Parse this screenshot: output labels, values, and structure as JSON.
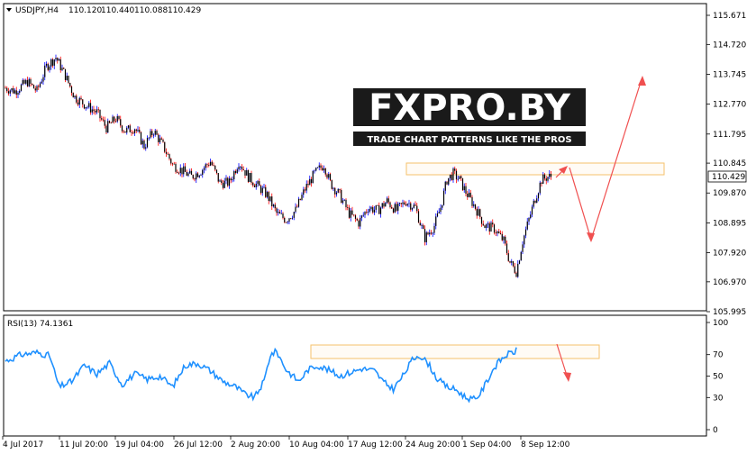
{
  "header": {
    "symbol": "USDJPY,H4",
    "open": "110.120",
    "high": "110.440",
    "low": "110.088",
    "close": "110.429"
  },
  "watermark": {
    "brand": "FXPRO.BY",
    "tagline": "TRADE CHART PATTERNS LIKE THE PROS"
  },
  "indicator": {
    "label": "RSI(13) 74.1361"
  },
  "colors": {
    "bull": "#0000ff",
    "bear": "#ff0000",
    "candle_body": "#000000",
    "rsi_line": "#1e90ff",
    "arrow": "#f05050",
    "zone": "#f5c26b"
  },
  "chart_data": [
    {
      "type": "candlestick",
      "symbol": "USDJPY",
      "timeframe": "H4",
      "ylim": [
        105.995,
        115.671
      ],
      "y_ticks": [
        "115.671",
        "114.720",
        "113.745",
        "112.770",
        "111.795",
        "110.845",
        "109.870",
        "108.895",
        "107.920",
        "106.970",
        "105.995"
      ],
      "current_price": "110.429",
      "x_tick_labels": [
        "4 Jul 2017",
        "11 Jul 20:00",
        "19 Jul 04:00",
        "26 Jul 12:00",
        "2 Aug 20:00",
        "10 Aug 04:00",
        "17 Aug 12:00",
        "24 Aug 20:00",
        "1 Sep 04:00",
        "8 Sep 12:00"
      ],
      "path_anchors": [
        [
          0,
          113.3
        ],
        [
          6,
          113.2
        ],
        [
          14,
          113.5
        ],
        [
          20,
          113.2
        ],
        [
          26,
          114.0
        ],
        [
          32,
          114.3
        ],
        [
          38,
          113.7
        ],
        [
          44,
          113.0
        ],
        [
          52,
          112.7
        ],
        [
          58,
          112.5
        ],
        [
          64,
          112.0
        ],
        [
          70,
          112.3
        ],
        [
          76,
          111.9
        ],
        [
          82,
          112.0
        ],
        [
          88,
          111.4
        ],
        [
          94,
          111.9
        ],
        [
          100,
          111.4
        ],
        [
          106,
          110.8
        ],
        [
          112,
          110.6
        ],
        [
          118,
          110.4
        ],
        [
          124,
          110.6
        ],
        [
          130,
          110.9
        ],
        [
          136,
          110.2
        ],
        [
          142,
          110.2
        ],
        [
          148,
          110.9
        ],
        [
          154,
          110.4
        ],
        [
          160,
          110.1
        ],
        [
          166,
          109.8
        ],
        [
          172,
          109.2
        ],
        [
          178,
          109.0
        ],
        [
          184,
          109.3
        ],
        [
          190,
          110.0
        ],
        [
          196,
          110.5
        ],
        [
          202,
          110.8
        ],
        [
          206,
          110.2
        ],
        [
          212,
          109.8
        ],
        [
          218,
          109.2
        ],
        [
          224,
          108.9
        ],
        [
          230,
          109.4
        ],
        [
          236,
          109.3
        ],
        [
          242,
          109.6
        ],
        [
          248,
          109.3
        ],
        [
          254,
          109.6
        ],
        [
          260,
          109.4
        ],
        [
          266,
          108.4
        ],
        [
          272,
          108.8
        ],
        [
          276,
          109.4
        ],
        [
          280,
          110.3
        ],
        [
          284,
          110.5
        ],
        [
          288,
          110.3
        ],
        [
          292,
          109.9
        ],
        [
          298,
          109.4
        ],
        [
          304,
          108.8
        ],
        [
          310,
          108.7
        ],
        [
          316,
          108.3
        ],
        [
          320,
          107.6
        ],
        [
          324,
          107.3
        ],
        [
          328,
          108.3
        ],
        [
          332,
          109.0
        ],
        [
          336,
          109.7
        ],
        [
          340,
          110.3
        ],
        [
          344,
          110.4
        ],
        [
          346,
          110.4
        ]
      ],
      "annotations": [
        "resistance zone 110.4–110.8",
        "projected move down to ~108.1 then up to ~113.6"
      ]
    },
    {
      "type": "line",
      "name": "RSI(13) 74.1361",
      "ylim": [
        0,
        100
      ],
      "y_ticks": [
        100,
        70,
        50,
        30,
        0
      ],
      "path_anchors": [
        [
          0,
          64
        ],
        [
          10,
          70
        ],
        [
          20,
          72
        ],
        [
          28,
          69
        ],
        [
          34,
          40
        ],
        [
          42,
          45
        ],
        [
          50,
          60
        ],
        [
          58,
          52
        ],
        [
          66,
          62
        ],
        [
          74,
          42
        ],
        [
          82,
          52
        ],
        [
          90,
          47
        ],
        [
          98,
          50
        ],
        [
          106,
          40
        ],
        [
          114,
          60
        ],
        [
          122,
          62
        ],
        [
          130,
          55
        ],
        [
          138,
          45
        ],
        [
          146,
          40
        ],
        [
          152,
          33
        ],
        [
          158,
          30
        ],
        [
          164,
          45
        ],
        [
          168,
          70
        ],
        [
          172,
          73
        ],
        [
          178,
          56
        ],
        [
          186,
          45
        ],
        [
          192,
          56
        ],
        [
          198,
          60
        ],
        [
          206,
          55
        ],
        [
          212,
          50
        ],
        [
          218,
          53
        ],
        [
          226,
          57
        ],
        [
          234,
          55
        ],
        [
          240,
          44
        ],
        [
          246,
          38
        ],
        [
          252,
          50
        ],
        [
          258,
          65
        ],
        [
          262,
          70
        ],
        [
          268,
          62
        ],
        [
          274,
          47
        ],
        [
          280,
          40
        ],
        [
          286,
          37
        ],
        [
          292,
          30
        ],
        [
          298,
          28
        ],
        [
          302,
          36
        ],
        [
          306,
          47
        ],
        [
          310,
          58
        ],
        [
          314,
          65
        ],
        [
          318,
          70
        ],
        [
          322,
          72
        ],
        [
          324,
          74
        ]
      ],
      "annotations": [
        "overbought zone ~65–75",
        "projected move down"
      ]
    }
  ]
}
